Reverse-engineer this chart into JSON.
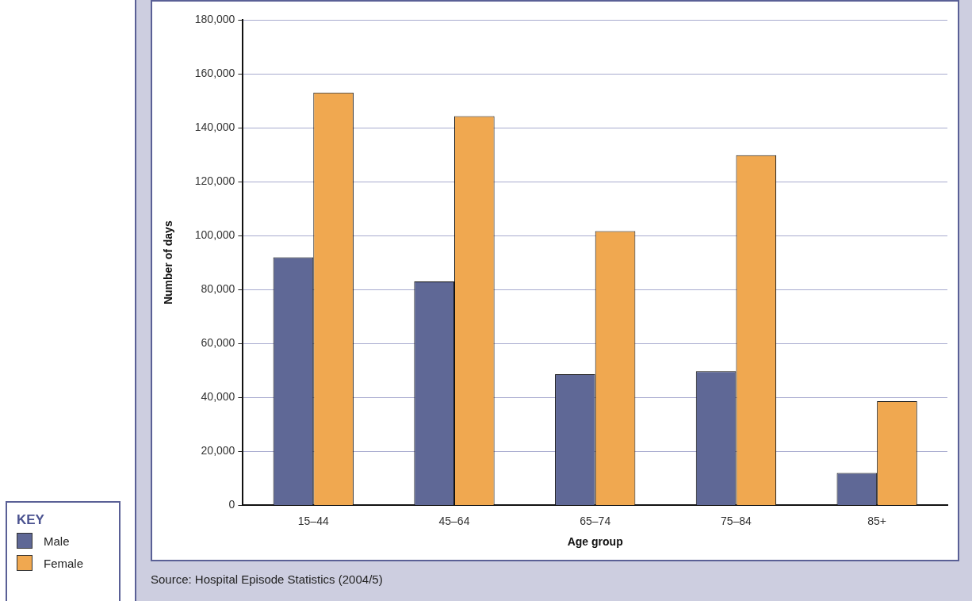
{
  "chart_data": {
    "type": "bar",
    "xlabel": "Age group",
    "ylabel": "Number of days",
    "legend_title": "KEY",
    "annotations": [
      "Source: Hospital Episode Statistics (2004/5)"
    ],
    "categories": [
      "15–44",
      "45–64",
      "65–74",
      "75–84",
      "85+"
    ],
    "series": [
      {
        "name": "Male",
        "color": "#5f6896",
        "values": [
          92000,
          83000,
          48600,
          49700,
          12000
        ]
      },
      {
        "name": "Female",
        "color": "#f0a850",
        "values": [
          153000,
          144300,
          101700,
          129800,
          38600
        ]
      }
    ],
    "ylim": [
      0,
      180000
    ],
    "yticks": [
      {
        "value": 0,
        "label": "0"
      },
      {
        "value": 20000,
        "label": "20,000"
      },
      {
        "value": 40000,
        "label": "40,000"
      },
      {
        "value": 60000,
        "label": "60,000"
      },
      {
        "value": 80000,
        "label": "80,000"
      },
      {
        "value": 100000,
        "label": "100,000"
      },
      {
        "value": 120000,
        "label": "120,000"
      },
      {
        "value": 140000,
        "label": "140,000"
      },
      {
        "value": 160000,
        "label": "160,000"
      },
      {
        "value": 180000,
        "label": "180,000"
      }
    ],
    "grid": "y",
    "legend": "bottom left"
  }
}
